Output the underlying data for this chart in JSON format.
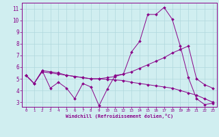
{
  "xlabel": "Windchill (Refroidissement éolien,°C)",
  "ylabel": "",
  "bg_color": "#d0eef0",
  "grid_color": "#b0d8dc",
  "line_color": "#880088",
  "spine_color": "#7700aa",
  "xlim": [
    -0.5,
    23.5
  ],
  "ylim": [
    2.6,
    11.5
  ],
  "xticks": [
    0,
    1,
    2,
    3,
    4,
    5,
    6,
    7,
    8,
    9,
    10,
    11,
    12,
    13,
    14,
    15,
    16,
    17,
    18,
    19,
    20,
    21,
    22,
    23
  ],
  "yticks": [
    3,
    4,
    5,
    6,
    7,
    8,
    9,
    10,
    11
  ],
  "line1_x": [
    0,
    1,
    2,
    3,
    4,
    5,
    6,
    7,
    8,
    9,
    10,
    11,
    12,
    13,
    14,
    15,
    16,
    17,
    18,
    19,
    20,
    21,
    22,
    23
  ],
  "line1_y": [
    5.3,
    4.6,
    5.7,
    4.2,
    4.7,
    4.2,
    3.3,
    4.6,
    4.3,
    2.7,
    4.1,
    5.3,
    5.4,
    7.3,
    8.2,
    10.5,
    10.5,
    11.1,
    10.1,
    7.8,
    5.1,
    3.3,
    2.8,
    2.9
  ],
  "line2_x": [
    0,
    1,
    2,
    3,
    4,
    5,
    6,
    7,
    8,
    9,
    10,
    11,
    12,
    13,
    14,
    15,
    16,
    17,
    18,
    19,
    20,
    21,
    22,
    23
  ],
  "line2_y": [
    5.3,
    4.6,
    5.7,
    5.6,
    5.5,
    5.3,
    5.2,
    5.1,
    5.0,
    5.0,
    5.1,
    5.2,
    5.4,
    5.6,
    5.9,
    6.2,
    6.5,
    6.8,
    7.2,
    7.5,
    7.8,
    5.0,
    4.5,
    4.2
  ],
  "line3_x": [
    0,
    1,
    2,
    3,
    4,
    5,
    6,
    7,
    8,
    9,
    10,
    11,
    12,
    13,
    14,
    15,
    16,
    17,
    18,
    19,
    20,
    21,
    22,
    23
  ],
  "line3_y": [
    5.3,
    4.6,
    5.6,
    5.5,
    5.4,
    5.3,
    5.2,
    5.1,
    5.0,
    5.0,
    4.95,
    4.9,
    4.85,
    4.7,
    4.6,
    4.5,
    4.4,
    4.3,
    4.2,
    4.0,
    3.8,
    3.6,
    3.3,
    3.0
  ]
}
